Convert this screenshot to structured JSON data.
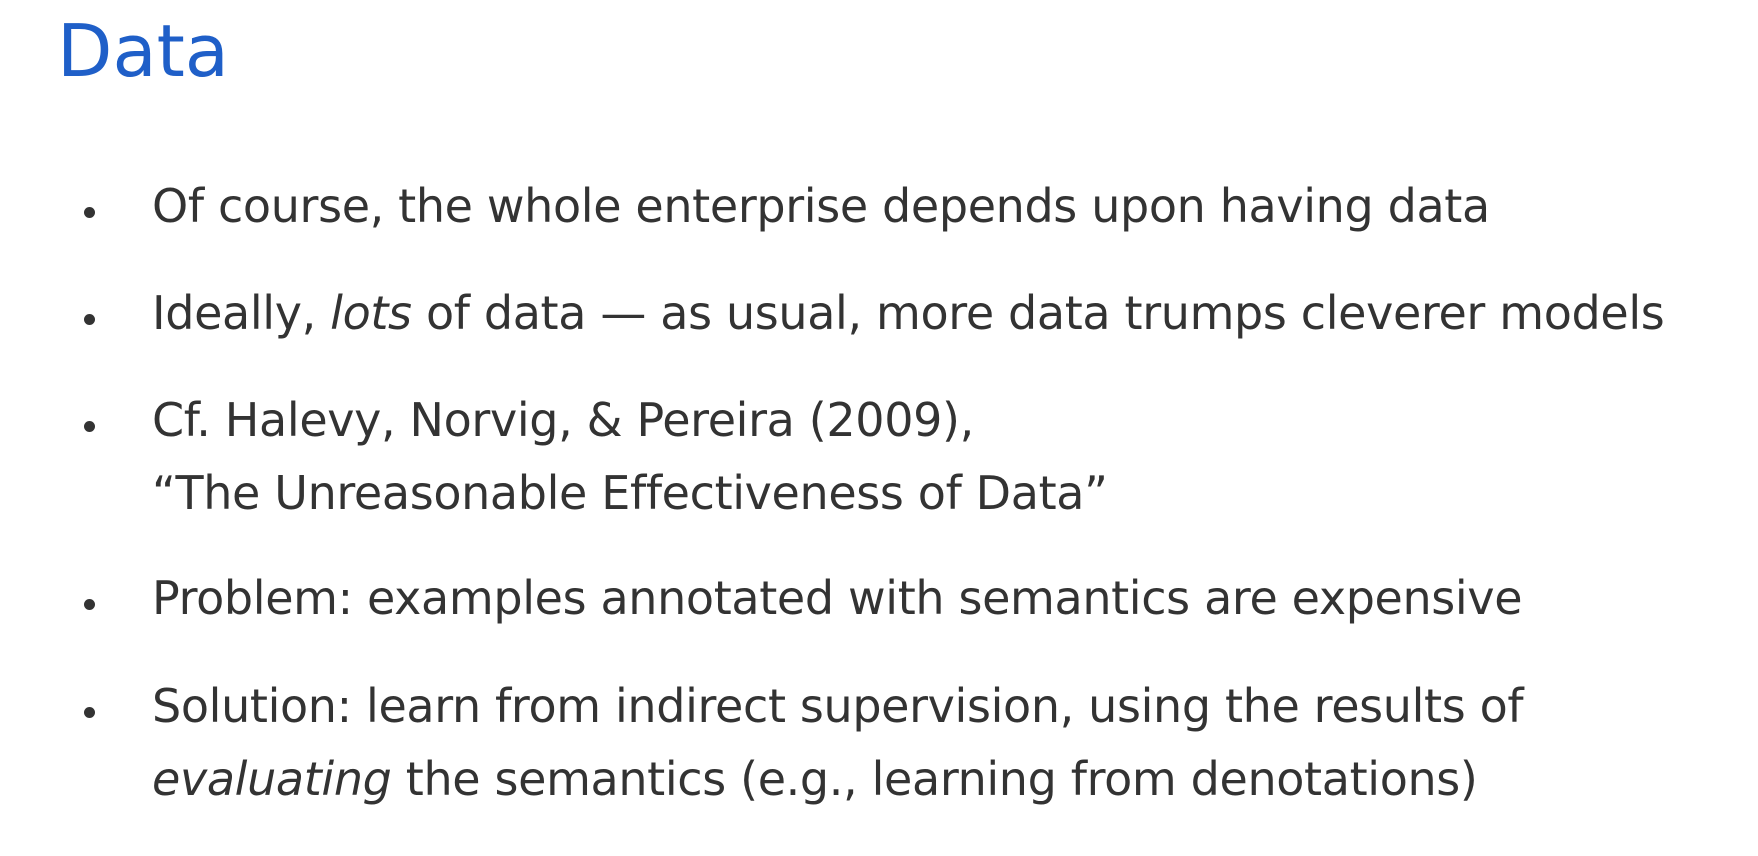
{
  "slide": {
    "title": "Data",
    "bullets": [
      {
        "lines": [
          {
            "parts": [
              {
                "text": "Of course, the whole enterprise depends upon having data",
                "italic": false
              }
            ]
          }
        ]
      },
      {
        "lines": [
          {
            "parts": [
              {
                "text": "Ideally, ",
                "italic": false
              },
              {
                "text": "lots",
                "italic": true
              },
              {
                "text": " of data — as usual, more data trumps cleverer models",
                "italic": false
              }
            ]
          }
        ]
      },
      {
        "lines": [
          {
            "parts": [
              {
                "text": "Cf. Halevy, Norvig, & Pereira (2009),",
                "italic": false
              }
            ]
          },
          {
            "parts": [
              {
                "text": "“The Unreasonable Effectiveness of Data”",
                "italic": false
              }
            ]
          }
        ]
      },
      {
        "lines": [
          {
            "parts": [
              {
                "text": "Problem: examples annotated with semantics are expensive",
                "italic": false
              }
            ]
          }
        ]
      },
      {
        "lines": [
          {
            "parts": [
              {
                "text": "Solution: learn from indirect supervision, using the results of",
                "italic": false
              }
            ]
          },
          {
            "parts": [
              {
                "text": "evaluating",
                "italic": true
              },
              {
                "text": " the semantics (e.g., learning from denotations)",
                "italic": false
              }
            ]
          }
        ]
      }
    ]
  },
  "colors": {
    "title": "#1f5fc8",
    "body_text": "#333333",
    "background": "#ffffff"
  }
}
